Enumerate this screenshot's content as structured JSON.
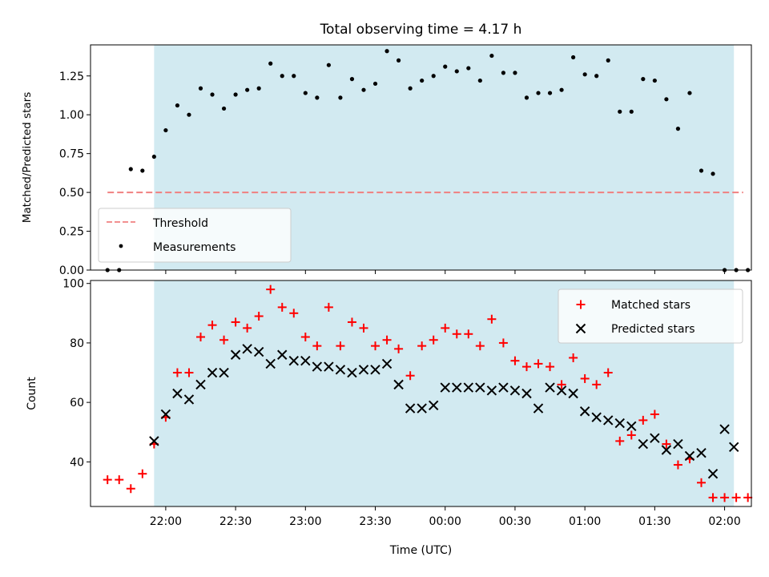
{
  "chart_data": [
    {
      "type": "scatter",
      "title": "Total observing time = 4.17 h",
      "xlabel": "",
      "ylabel": "Matched/Predicted stars",
      "ylim": [
        0,
        1.45
      ],
      "yticks": [
        "0.00",
        "0.25",
        "0.50",
        "0.75",
        "1.00",
        "1.25"
      ],
      "highlight_span": {
        "start": "21:55",
        "end": "02:04",
        "color": "#add8e6"
      },
      "threshold": {
        "name": "Threshold",
        "value": 0.5,
        "x_start": "21:35",
        "x_end": "02:08",
        "color": "#f08080",
        "style": "dashed"
      },
      "legend": {
        "position": "lower left",
        "entries": [
          "Threshold",
          "Measurements"
        ]
      },
      "series": [
        {
          "name": "Measurements",
          "marker": "dot",
          "color": "#000000",
          "x": [
            "21:35",
            "21:40",
            "21:45",
            "21:50",
            "21:55",
            "22:00",
            "22:05",
            "22:10",
            "22:15",
            "22:20",
            "22:25",
            "22:30",
            "22:35",
            "22:40",
            "22:45",
            "22:50",
            "22:55",
            "23:00",
            "23:05",
            "23:10",
            "23:15",
            "23:20",
            "23:25",
            "23:30",
            "23:35",
            "23:40",
            "23:45",
            "23:50",
            "23:55",
            "00:00",
            "00:05",
            "00:10",
            "00:15",
            "00:20",
            "00:25",
            "00:30",
            "00:35",
            "00:40",
            "00:45",
            "00:50",
            "00:55",
            "01:00",
            "01:05",
            "01:10",
            "01:15",
            "01:20",
            "01:25",
            "01:30",
            "01:35",
            "01:40",
            "01:45",
            "01:50",
            "01:55",
            "02:00",
            "02:05",
            "02:10"
          ],
          "y": [
            0.0,
            0.0,
            0.65,
            0.64,
            0.73,
            0.9,
            1.06,
            1.0,
            1.17,
            1.13,
            1.04,
            1.13,
            1.16,
            1.17,
            1.33,
            1.25,
            1.25,
            1.14,
            1.11,
            1.32,
            1.11,
            1.23,
            1.16,
            1.2,
            1.41,
            1.35,
            1.17,
            1.22,
            1.25,
            1.31,
            1.28,
            1.3,
            1.22,
            1.38,
            1.27,
            1.27,
            1.11,
            1.14,
            1.14,
            1.16,
            1.37,
            1.26,
            1.25,
            1.35,
            1.02,
            1.02,
            1.23,
            1.22,
            1.1,
            0.91,
            1.14,
            0.64,
            0.62,
            0.0,
            0.0,
            0.0
          ]
        }
      ]
    },
    {
      "type": "scatter",
      "title": "",
      "xlabel": "Time (UTC)",
      "ylabel": "Count",
      "ylim": [
        25,
        101
      ],
      "yticks": [
        "40",
        "60",
        "80",
        "100"
      ],
      "xticks": [
        "22:00",
        "22:30",
        "23:00",
        "23:30",
        "00:00",
        "00:30",
        "01:00",
        "01:30",
        "02:00"
      ],
      "highlight_span": {
        "start": "21:55",
        "end": "02:04",
        "color": "#add8e6"
      },
      "legend": {
        "position": "upper right",
        "entries": [
          "Matched stars",
          "Predicted stars"
        ]
      },
      "series": [
        {
          "name": "Matched stars",
          "marker": "plus",
          "color": "#ff0000",
          "x": [
            "21:35",
            "21:40",
            "21:45",
            "21:50",
            "21:55",
            "22:00",
            "22:05",
            "22:10",
            "22:15",
            "22:20",
            "22:25",
            "22:30",
            "22:35",
            "22:40",
            "22:45",
            "22:50",
            "22:55",
            "23:00",
            "23:05",
            "23:10",
            "23:15",
            "23:20",
            "23:25",
            "23:30",
            "23:35",
            "23:40",
            "23:45",
            "23:50",
            "23:55",
            "00:00",
            "00:05",
            "00:10",
            "00:15",
            "00:20",
            "00:25",
            "00:30",
            "00:35",
            "00:40",
            "00:45",
            "00:50",
            "00:55",
            "01:00",
            "01:05",
            "01:10",
            "01:15",
            "01:20",
            "01:25",
            "01:30",
            "01:35",
            "01:40",
            "01:45",
            "01:50",
            "01:55",
            "02:00",
            "02:05",
            "02:10"
          ],
          "y": [
            34,
            34,
            31,
            36,
            46,
            55,
            70,
            70,
            82,
            86,
            81,
            87,
            85,
            89,
            98,
            92,
            90,
            82,
            79,
            92,
            79,
            87,
            85,
            79,
            81,
            78,
            69,
            79,
            81,
            85,
            83,
            83,
            79,
            88,
            80,
            74,
            72,
            73,
            72,
            66,
            75,
            68,
            66,
            70,
            47,
            49,
            54,
            56,
            46,
            39,
            41,
            33,
            28,
            28,
            28,
            28
          ]
        },
        {
          "name": "Predicted stars",
          "marker": "x",
          "color": "#000000",
          "x": [
            "21:55",
            "22:00",
            "22:05",
            "22:10",
            "22:15",
            "22:20",
            "22:25",
            "22:30",
            "22:35",
            "22:40",
            "22:45",
            "22:50",
            "22:55",
            "23:00",
            "23:05",
            "23:10",
            "23:15",
            "23:20",
            "23:25",
            "23:30",
            "23:35",
            "23:40",
            "23:45",
            "23:50",
            "23:55",
            "00:00",
            "00:05",
            "00:10",
            "00:15",
            "00:20",
            "00:25",
            "00:30",
            "00:35",
            "00:40",
            "00:45",
            "00:50",
            "00:55",
            "01:00",
            "01:05",
            "01:10",
            "01:15",
            "01:20",
            "01:25",
            "01:30",
            "01:35",
            "01:40",
            "01:45",
            "01:50",
            "01:55",
            "02:00",
            "02:04"
          ],
          "y": [
            47,
            56,
            63,
            61,
            66,
            70,
            70,
            76,
            78,
            77,
            73,
            76,
            74,
            74,
            72,
            72,
            71,
            70,
            71,
            71,
            73,
            66,
            58,
            58,
            59,
            65,
            65,
            65,
            65,
            64,
            65,
            64,
            63,
            58,
            65,
            64,
            63,
            57,
            55,
            54,
            53,
            52,
            46,
            48,
            44,
            46,
            42,
            43,
            36,
            51,
            45
          ]
        }
      ]
    }
  ]
}
